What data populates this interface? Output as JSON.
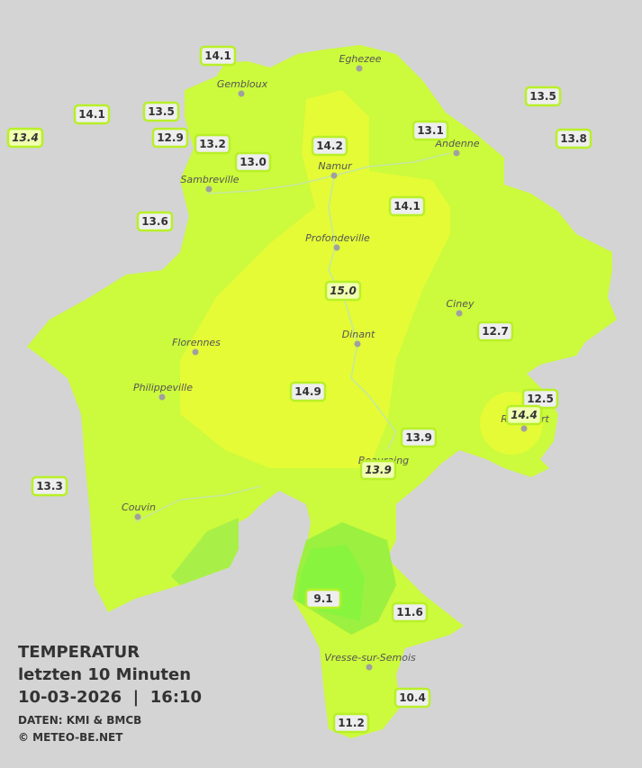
{
  "title": "TEMPERATUR",
  "subtitle": "letzten 10 Minuten",
  "datetime": "10-03-2026  |  16:10",
  "source": "DATEN: KMI & BMCB",
  "copyright": "© METEO-BE.NET",
  "cities": [
    {
      "name": "Eghezee"
    },
    {
      "name": "Gembloux"
    },
    {
      "name": "Andenne"
    },
    {
      "name": "Namur"
    },
    {
      "name": "Sambreville"
    },
    {
      "name": "Profondeville"
    },
    {
      "name": "Ciney"
    },
    {
      "name": "Florennes"
    },
    {
      "name": "Dinant"
    },
    {
      "name": "Philippeville"
    },
    {
      "name": "Rochefort"
    },
    {
      "name": "Beauraing"
    },
    {
      "name": "Couvin"
    },
    {
      "name": "Vresse-sur-Semois"
    }
  ],
  "stations": [
    {
      "label": "14.1"
    },
    {
      "label": "14.1"
    },
    {
      "label": "13.5"
    },
    {
      "label": "13.4",
      "italic": true
    },
    {
      "label": "12.9"
    },
    {
      "label": "13.2"
    },
    {
      "label": "13.0"
    },
    {
      "label": "14.2"
    },
    {
      "label": "13.1"
    },
    {
      "label": "13.5"
    },
    {
      "label": "13.8"
    },
    {
      "label": "13.6"
    },
    {
      "label": "14.1"
    },
    {
      "label": "15.0",
      "italic": true
    },
    {
      "label": "12.7"
    },
    {
      "label": "14.9"
    },
    {
      "label": "12.5"
    },
    {
      "label": "14.4",
      "italic": true
    },
    {
      "label": "13.9"
    },
    {
      "label": "13.9",
      "italic": true
    },
    {
      "label": "13.3"
    },
    {
      "label": "9.1"
    },
    {
      "label": "11.6"
    },
    {
      "label": "10.4"
    },
    {
      "label": "11.2"
    }
  ]
}
